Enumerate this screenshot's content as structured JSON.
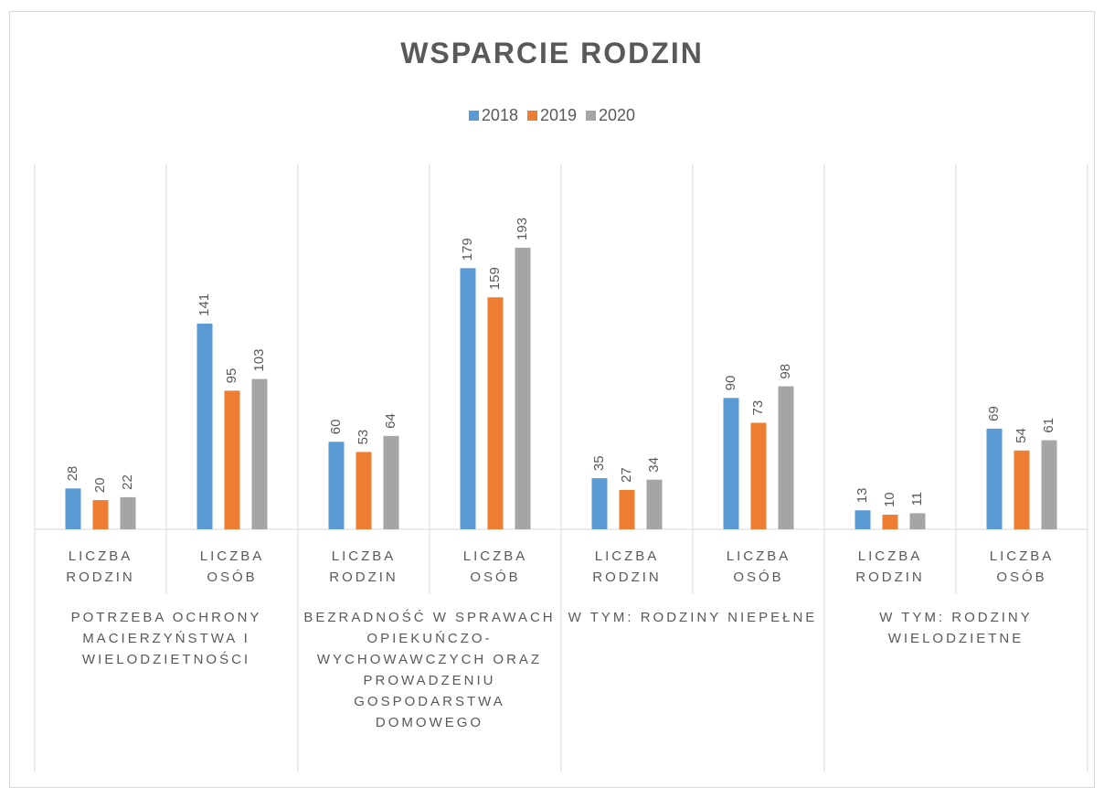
{
  "chart_data": {
    "type": "bar",
    "title": "WSPARCIE RODZIN",
    "categories": [
      "LICZBA RODZIN",
      "LICZBA OSÓB",
      "LICZBA RODZIN",
      "LICZBA OSÓB",
      "LICZBA RODZIN",
      "LICZBA OSÓB",
      "LICZBA RODZIN",
      "LICZBA OSÓB"
    ],
    "groups": [
      "POTRZEBA OCHRONY MACIERZYŃSTWA I WIELODZIETNOŚCI",
      "BEZRADNOŚĆ W SPRAWACH OPIEKUŃCZO-WYCHOWAWCZYCH ORAZ PROWADZENIU GOSPODARSTWA DOMOWEGO",
      "W TYM: RODZINY NIEPEŁNE",
      "W TYM: RODZINY WIELODZIETNE"
    ],
    "series": [
      {
        "name": "2018",
        "color": "#5b9bd5",
        "values": [
          28,
          141,
          60,
          179,
          35,
          90,
          13,
          69
        ]
      },
      {
        "name": "2019",
        "color": "#ed7d31",
        "values": [
          20,
          95,
          53,
          159,
          27,
          73,
          10,
          54
        ]
      },
      {
        "name": "2020",
        "color": "#a5a5a5",
        "values": [
          22,
          103,
          64,
          193,
          34,
          98,
          11,
          61
        ]
      }
    ],
    "ylim": [
      0,
      250
    ],
    "legend": "top"
  }
}
